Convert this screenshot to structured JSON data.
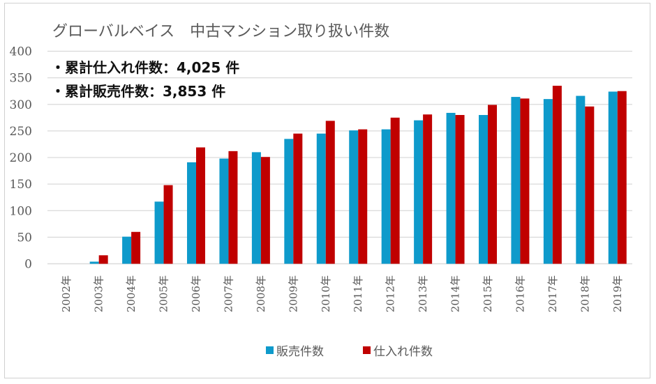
{
  "chart_data": {
    "type": "bar",
    "title": "グローバルベイス　中古マンション取り扱い件数",
    "annotations": [
      "・累計仕入れ件数：4,025 件",
      "・累計販売件数：3,853 件"
    ],
    "xlabel": "",
    "ylabel": "",
    "ylim": [
      0,
      400
    ],
    "yticks": [
      0,
      50,
      100,
      150,
      200,
      250,
      300,
      350,
      400
    ],
    "grid": true,
    "legend_position": "bottom",
    "categories": [
      "2002年",
      "2003年",
      "2004年",
      "2005年",
      "2006年",
      "2007年",
      "2008年",
      "2009年",
      "2010年",
      "2011年",
      "2012年",
      "2013年",
      "2014年",
      "2015年",
      "2016年",
      "2017年",
      "2018年",
      "2019年"
    ],
    "series": [
      {
        "name": "販売件数",
        "color": "#0e9acb",
        "values": [
          0,
          4,
          51,
          117,
          191,
          198,
          210,
          235,
          245,
          251,
          253,
          270,
          284,
          280,
          314,
          310,
          316,
          324
        ]
      },
      {
        "name": "仕入れ件数",
        "color": "#c00000",
        "values": [
          0,
          16,
          60,
          148,
          219,
          212,
          201,
          245,
          269,
          253,
          275,
          281,
          280,
          299,
          311,
          335,
          296,
          325
        ]
      }
    ]
  }
}
